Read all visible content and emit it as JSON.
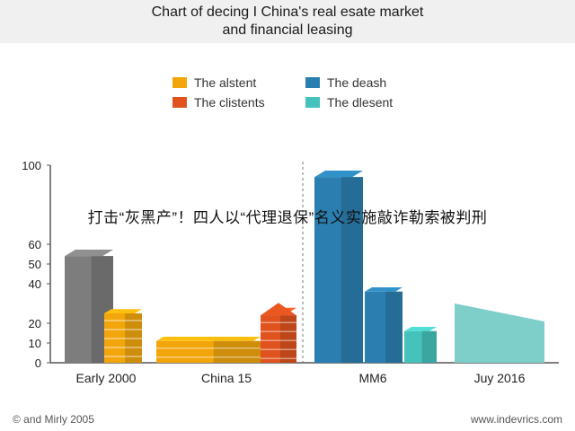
{
  "title_line1": "Chart of decing I China's real esate market",
  "title_line2": "and financial leasing",
  "overlay_caption": "打击“灰黑产”！四人以“代理退保”名义实施敲诈勒索被判刑",
  "footer": {
    "left": "© and Mirly 2005",
    "right": "www.indevrics.com"
  },
  "legend": [
    {
      "label": "The alstent",
      "color": "#f2a60c"
    },
    {
      "label": "The deash",
      "color": "#2b7fb0"
    },
    {
      "label": "The clistents",
      "color": "#e0531f"
    },
    {
      "label": "The dlesent",
      "color": "#45c2bb"
    }
  ],
  "chart_data": {
    "type": "bar",
    "title": "Chart of decing I China's real esate market and financial leasing",
    "categories": [
      "Early 2000",
      "China 15",
      "MM6",
      "Juy 2016"
    ],
    "yticks": [
      "0",
      "10",
      "20",
      "40",
      "50",
      "60",
      "100"
    ],
    "ylim": [
      0,
      100
    ],
    "bars": [
      {
        "category": "Early 2000",
        "value": 54,
        "color": "#7d7d7d"
      },
      {
        "category": "Early 2000",
        "value": 25,
        "color": "#f2a60c"
      },
      {
        "category": "China 15",
        "value": 11,
        "color": "#f2a60c"
      },
      {
        "category": "China 15",
        "value": 24,
        "color": "#e0531f"
      },
      {
        "category": "MM6",
        "value": 94,
        "color": "#2b7fb0"
      },
      {
        "category": "MM6",
        "value": 36,
        "color": "#2b7fb0"
      },
      {
        "category": "MM6",
        "value": 16,
        "color": "#45c2bb"
      },
      {
        "category": "Juy 2016",
        "value": 30,
        "color": "#7ecfca"
      }
    ],
    "grid": false,
    "legend_position": "top"
  }
}
